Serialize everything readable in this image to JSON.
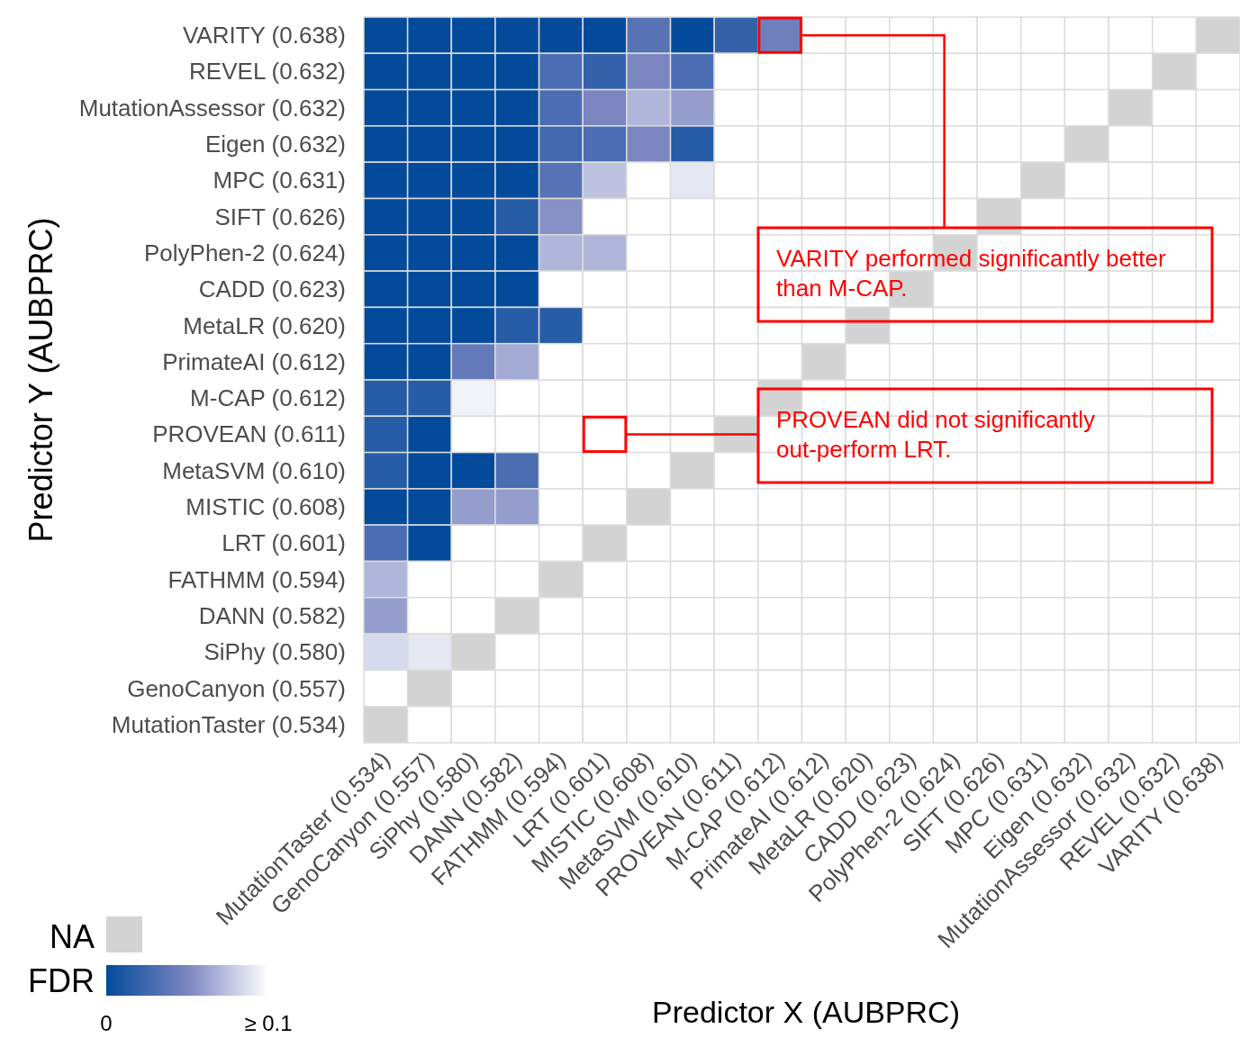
{
  "chart_data": {
    "type": "heatmap",
    "xlabel": "Predictor X (AUBPRC)",
    "ylabel": "Predictor Y (AUBPRC)",
    "clabel": "FDR",
    "clim": [
      0,
      0.1
    ],
    "cticks": [
      0,
      {
        "value": 0.1,
        "label": "≥ 0.1"
      }
    ],
    "categories": [
      "MutationTaster (0.534)",
      "GenoCanyon (0.557)",
      "SiPhy (0.580)",
      "DANN (0.582)",
      "FATHMM (0.594)",
      "LRT (0.601)",
      "MISTIC (0.608)",
      "MetaSVM (0.610)",
      "PROVEAN (0.611)",
      "M-CAP (0.612)",
      "PrimateAI (0.612)",
      "MetaLR (0.620)",
      "CADD (0.623)",
      "PolyPhen-2 (0.624)",
      "SIFT (0.626)",
      "MPC (0.631)",
      "Eigen (0.632)",
      "MutationAssessor (0.632)",
      "REVEL (0.632)",
      "VARITY (0.638)"
    ],
    "y_categories": [
      "VARITY (0.638)",
      "REVEL (0.632)",
      "MutationAssessor (0.632)",
      "Eigen (0.632)",
      "MPC (0.631)",
      "SIFT (0.626)",
      "PolyPhen-2 (0.624)",
      "CADD (0.623)",
      "MetaLR (0.620)",
      "PrimateAI (0.612)",
      "M-CAP (0.612)",
      "PROVEAN (0.611)",
      "MetaSVM (0.610)",
      "MISTIC (0.608)",
      "LRT (0.601)",
      "FATHMM (0.594)",
      "DANN (0.582)",
      "SiPhy (0.580)",
      "GenoCanyon (0.557)",
      "MutationTaster (0.534)"
    ],
    "cells": [
      [
        0,
        0,
        0,
        0,
        0,
        0,
        0.035,
        0,
        0.02,
        0.045,
        0.1,
        0.1,
        0.1,
        0.1,
        0.1,
        0.1,
        0.1,
        0.1,
        0.1,
        null
      ],
      [
        0,
        0,
        0,
        0,
        0.03,
        0.02,
        0.05,
        0.03,
        0.1,
        0.1,
        0.1,
        0.1,
        0.1,
        0.1,
        0.1,
        0.1,
        0.1,
        0.1,
        null,
        0.1
      ],
      [
        0,
        0,
        0,
        0,
        0.03,
        0.05,
        0.07,
        0.06,
        0.1,
        0.1,
        0.1,
        0.1,
        0.1,
        0.1,
        0.1,
        0.1,
        0.1,
        null,
        0.1,
        0.1
      ],
      [
        0,
        0,
        0,
        0,
        0.025,
        0.03,
        0.05,
        0.015,
        0.1,
        0.1,
        0.1,
        0.1,
        0.1,
        0.1,
        0.1,
        0.1,
        null,
        0.1,
        0.1,
        0.1
      ],
      [
        0,
        0,
        0,
        0,
        0.035,
        0.075,
        0.1,
        0.09,
        0.1,
        0.1,
        0.1,
        0.1,
        0.1,
        0.1,
        0.1,
        null,
        0.1,
        0.1,
        0.1,
        0.1
      ],
      [
        0,
        0,
        0,
        0.015,
        0.055,
        0.1,
        0.1,
        0.1,
        0.1,
        0.1,
        0.1,
        0.1,
        0.1,
        0.1,
        null,
        0.1,
        0.1,
        0.1,
        0.1,
        0.1
      ],
      [
        0,
        0,
        0,
        0,
        0.07,
        0.07,
        0.1,
        0.1,
        0.1,
        0.1,
        0.1,
        0.1,
        0.1,
        null,
        0.1,
        0.1,
        0.1,
        0.1,
        0.1,
        0.1
      ],
      [
        0,
        0,
        0,
        0,
        0.1,
        0.1,
        0.1,
        0.1,
        0.1,
        0.1,
        0.1,
        0.1,
        null,
        0.1,
        0.1,
        0.1,
        0.1,
        0.1,
        0.1,
        0.1
      ],
      [
        0,
        0,
        0,
        0.015,
        0.015,
        0.1,
        0.1,
        0.1,
        0.1,
        0.1,
        0.1,
        null,
        0.1,
        0.1,
        0.1,
        0.1,
        0.1,
        0.1,
        0.1,
        0.1
      ],
      [
        0,
        0,
        0.04,
        0.065,
        0.1,
        0.1,
        0.1,
        0.1,
        0.1,
        0.1,
        null,
        0.1,
        0.1,
        0.1,
        0.1,
        0.1,
        0.1,
        0.1,
        0.1,
        0.1
      ],
      [
        0.015,
        0.015,
        0.095,
        0.1,
        0.1,
        0.1,
        0.1,
        0.1,
        0.1,
        null,
        0.1,
        0.1,
        0.1,
        0.1,
        0.1,
        0.1,
        0.1,
        0.1,
        0.1,
        0.1
      ],
      [
        0.015,
        0,
        0.1,
        0.1,
        0.1,
        0.1,
        0.1,
        0.1,
        null,
        0.1,
        0.1,
        0.1,
        0.1,
        0.1,
        0.1,
        0.1,
        0.1,
        0.1,
        0.1,
        0.1
      ],
      [
        0.015,
        0,
        0,
        0.03,
        0.1,
        0.1,
        0.1,
        null,
        0.1,
        0.1,
        0.1,
        0.1,
        0.1,
        0.1,
        0.1,
        0.1,
        0.1,
        0.1,
        0.1,
        0.1
      ],
      [
        0,
        0,
        0.06,
        0.06,
        0.1,
        0.1,
        null,
        0.1,
        0.1,
        0.1,
        0.1,
        0.1,
        0.1,
        0.1,
        0.1,
        0.1,
        0.1,
        0.1,
        0.1,
        0.1
      ],
      [
        0.03,
        0,
        0.1,
        0.1,
        0.1,
        null,
        0.1,
        0.1,
        0.1,
        0.1,
        0.1,
        0.1,
        0.1,
        0.1,
        0.1,
        0.1,
        0.1,
        0.1,
        0.1,
        0.1
      ],
      [
        0.07,
        0.1,
        0.1,
        0.1,
        null,
        0.1,
        0.1,
        0.1,
        0.1,
        0.1,
        0.1,
        0.1,
        0.1,
        0.1,
        0.1,
        0.1,
        0.1,
        0.1,
        0.1,
        0.1
      ],
      [
        0.06,
        0.1,
        0.1,
        null,
        0.1,
        0.1,
        0.1,
        0.1,
        0.1,
        0.1,
        0.1,
        0.1,
        0.1,
        0.1,
        0.1,
        0.1,
        0.1,
        0.1,
        0.1,
        0.1
      ],
      [
        0.085,
        0.09,
        null,
        0.1,
        0.1,
        0.1,
        0.1,
        0.1,
        0.1,
        0.1,
        0.1,
        0.1,
        0.1,
        0.1,
        0.1,
        0.1,
        0.1,
        0.1,
        0.1,
        0.1
      ],
      [
        0.1,
        null,
        0.1,
        0.1,
        0.1,
        0.1,
        0.1,
        0.1,
        0.1,
        0.1,
        0.1,
        0.1,
        0.1,
        0.1,
        0.1,
        0.1,
        0.1,
        0.1,
        0.1,
        0.1
      ],
      [
        null,
        0.1,
        0.1,
        0.1,
        0.1,
        0.1,
        0.1,
        0.1,
        0.1,
        0.1,
        0.1,
        0.1,
        0.1,
        0.1,
        0.1,
        0.1,
        0.1,
        0.1,
        0.1,
        0.1
      ]
    ],
    "annotations": [
      "NA",
      "VARITY performed significantly better than M-CAP.",
      "PROVEAN did not significantly out-perform LRT."
    ]
  }
}
